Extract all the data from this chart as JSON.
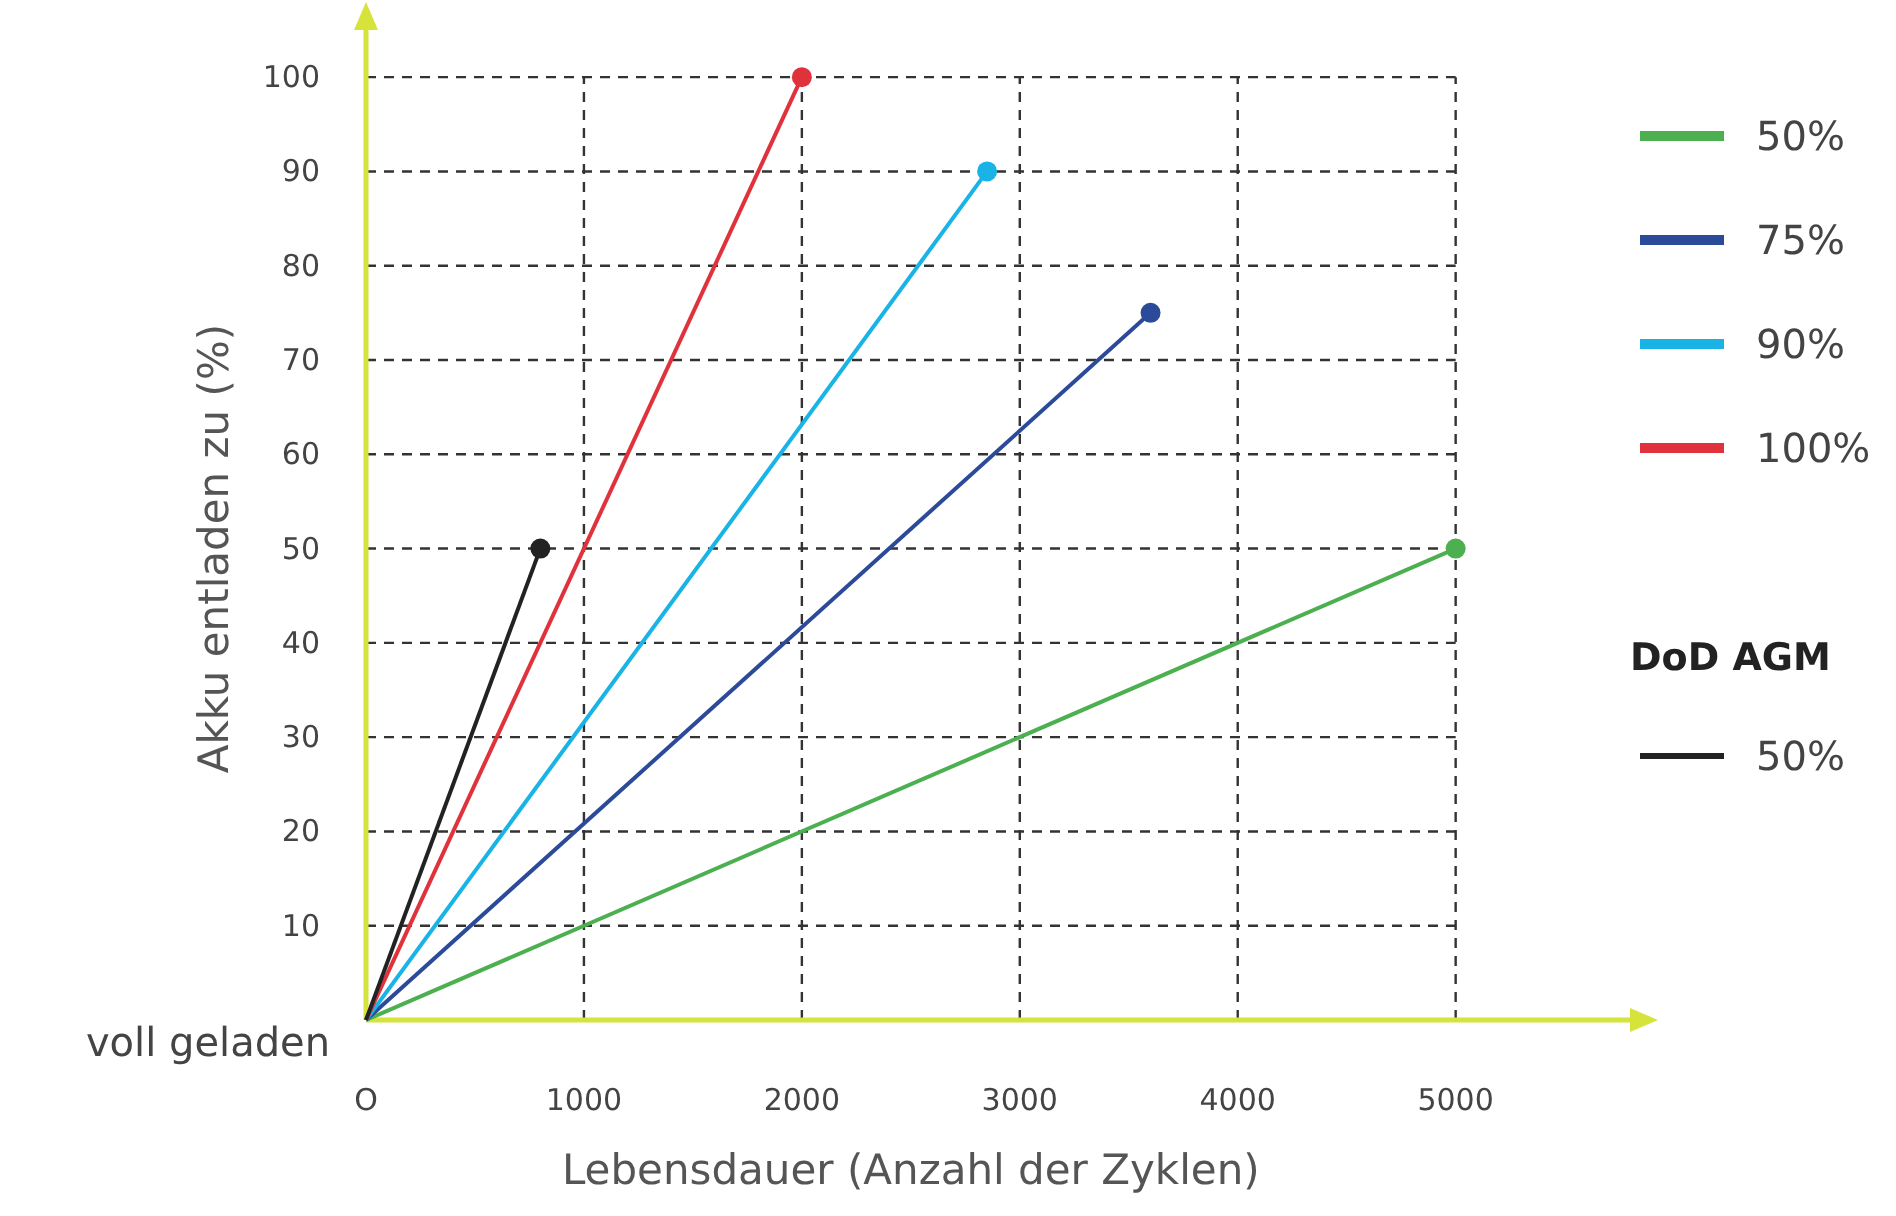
{
  "chart_data": {
    "type": "line",
    "xlabel": "Lebensdauer (Anzahl der Zyklen)",
    "ylabel": "Akku entladen zu (%)",
    "xlim": [
      0,
      5800
    ],
    "ylim": [
      0,
      105
    ],
    "xticks": [
      {
        "value": 0,
        "label": "O"
      },
      1000,
      2000,
      3000,
      4000,
      5000
    ],
    "yticks": [
      {
        "value": 0,
        "label": "voll geladen"
      },
      10,
      20,
      30,
      40,
      50,
      60,
      70,
      80,
      90,
      100
    ],
    "grid": true,
    "legend": "right",
    "legend_title": "DoD AGM",
    "marker": "circle",
    "line_style": "solid",
    "series": [
      {
        "name": "50%",
        "color": "#4caf50",
        "x": [
          0,
          5000
        ],
        "values": [
          0,
          50
        ]
      },
      {
        "name": "75%",
        "color": "#2b4a9a",
        "x": [
          0,
          3600
        ],
        "values": [
          0,
          75
        ]
      },
      {
        "name": "90%",
        "color": "#1ab3e6",
        "x": [
          0,
          2850
        ],
        "values": [
          0,
          90
        ]
      },
      {
        "name": "100%",
        "color": "#e0323c",
        "x": [
          0,
          2000
        ],
        "values": [
          0,
          100
        ]
      },
      {
        "name": "50%",
        "color": "#222222",
        "x": [
          0,
          800
        ],
        "values": [
          0,
          50
        ]
      }
    ]
  }
}
